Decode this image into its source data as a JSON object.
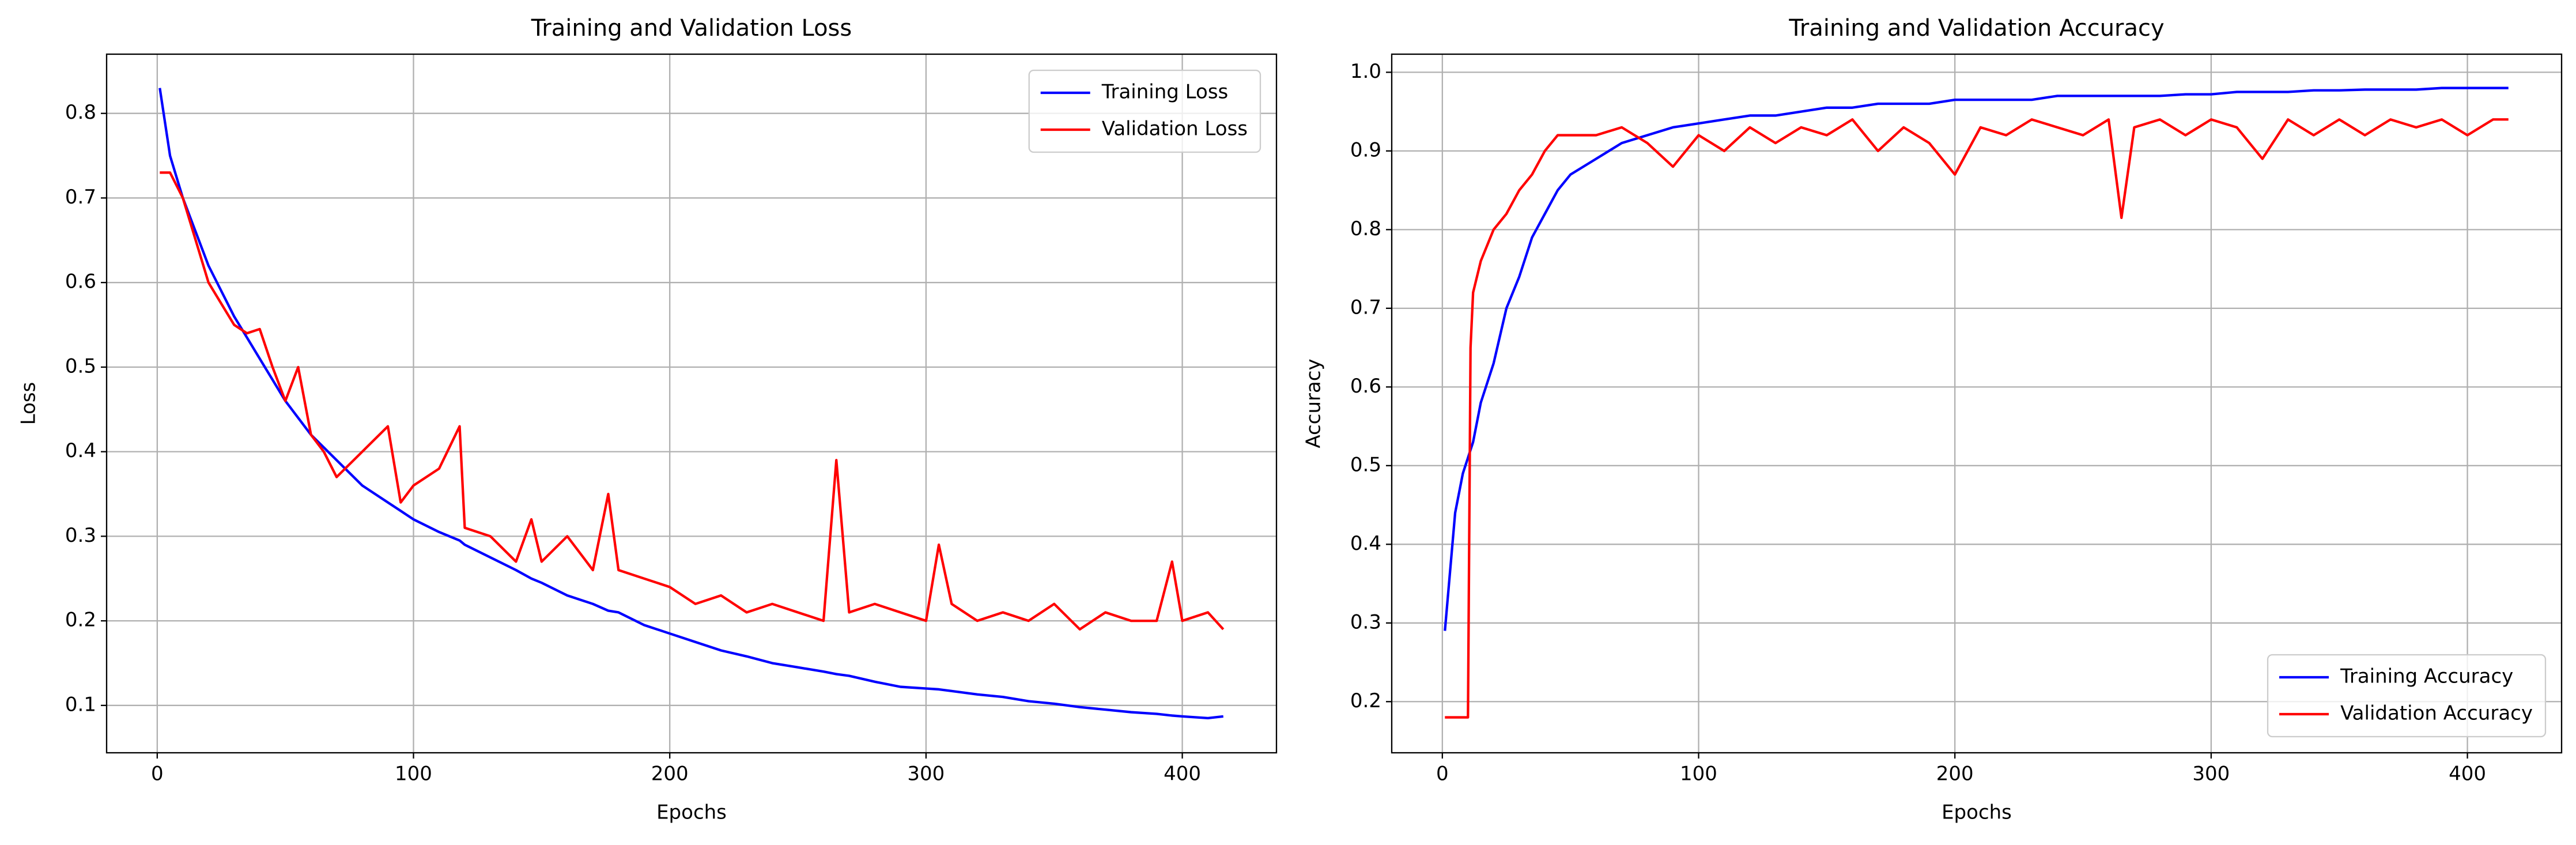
{
  "chart_data": [
    {
      "type": "line",
      "title": "Training and Validation Loss",
      "x_label": "Epochs",
      "y_label": "Loss",
      "x": [
        1,
        5,
        10,
        15,
        20,
        25,
        30,
        35,
        40,
        45,
        50,
        55,
        60,
        65,
        70,
        80,
        90,
        95,
        100,
        110,
        118,
        120,
        130,
        140,
        146,
        150,
        160,
        170,
        176,
        180,
        190,
        200,
        210,
        220,
        230,
        240,
        250,
        260,
        265,
        270,
        280,
        290,
        300,
        305,
        310,
        320,
        330,
        340,
        350,
        360,
        370,
        380,
        390,
        396,
        400,
        410,
        416
      ],
      "series": [
        {
          "name": "Training Loss",
          "color": "#0000ff",
          "values": [
            0.83,
            0.75,
            0.7,
            0.66,
            0.62,
            0.59,
            0.56,
            0.535,
            0.51,
            0.485,
            0.46,
            0.44,
            0.42,
            0.405,
            0.39,
            0.36,
            0.34,
            0.33,
            0.32,
            0.305,
            0.295,
            0.29,
            0.275,
            0.26,
            0.25,
            0.245,
            0.23,
            0.22,
            0.212,
            0.21,
            0.195,
            0.185,
            0.175,
            0.165,
            0.158,
            0.15,
            0.145,
            0.14,
            0.137,
            0.135,
            0.128,
            0.122,
            0.12,
            0.119,
            0.117,
            0.113,
            0.11,
            0.105,
            0.102,
            0.098,
            0.095,
            0.092,
            0.09,
            0.088,
            0.087,
            0.085,
            0.087
          ]
        },
        {
          "name": "Validation Loss",
          "color": "#ff0000",
          "values": [
            0.73,
            0.73,
            0.7,
            0.65,
            0.6,
            0.575,
            0.55,
            0.54,
            0.545,
            0.5,
            0.46,
            0.5,
            0.42,
            0.4,
            0.37,
            0.4,
            0.43,
            0.34,
            0.36,
            0.38,
            0.43,
            0.31,
            0.3,
            0.27,
            0.32,
            0.27,
            0.3,
            0.26,
            0.35,
            0.26,
            0.25,
            0.24,
            0.22,
            0.23,
            0.21,
            0.22,
            0.21,
            0.2,
            0.39,
            0.21,
            0.22,
            0.21,
            0.2,
            0.29,
            0.22,
            0.2,
            0.21,
            0.2,
            0.22,
            0.19,
            0.21,
            0.2,
            0.2,
            0.27,
            0.2,
            0.21,
            0.19
          ]
        }
      ],
      "xlim": [
        -19.75,
        436.75
      ],
      "xticks": [
        0,
        100,
        200,
        300,
        400
      ],
      "ylim": [
        0.044,
        0.87
      ],
      "yticks": [
        0.1,
        0.2,
        0.3,
        0.4,
        0.5,
        0.6,
        0.7,
        0.8
      ],
      "grid": true,
      "legend": "upper right"
    },
    {
      "type": "line",
      "title": "Training and Validation Accuracy",
      "x_label": "Epochs",
      "y_label": "Accuracy",
      "x": [
        1,
        5,
        8,
        10,
        11,
        12,
        15,
        20,
        25,
        30,
        35,
        40,
        45,
        50,
        60,
        70,
        80,
        90,
        100,
        110,
        120,
        130,
        140,
        150,
        160,
        170,
        180,
        190,
        200,
        210,
        220,
        230,
        240,
        250,
        260,
        265,
        270,
        280,
        290,
        300,
        310,
        320,
        330,
        340,
        350,
        360,
        370,
        380,
        390,
        400,
        410,
        416
      ],
      "series": [
        {
          "name": "Training Accuracy",
          "color": "#0000ff",
          "values": [
            0.29,
            0.44,
            0.49,
            0.51,
            0.52,
            0.53,
            0.58,
            0.63,
            0.7,
            0.74,
            0.79,
            0.82,
            0.85,
            0.87,
            0.89,
            0.91,
            0.92,
            0.93,
            0.935,
            0.94,
            0.945,
            0.945,
            0.95,
            0.955,
            0.955,
            0.96,
            0.96,
            0.96,
            0.965,
            0.965,
            0.965,
            0.965,
            0.97,
            0.97,
            0.97,
            0.97,
            0.97,
            0.97,
            0.972,
            0.972,
            0.975,
            0.975,
            0.975,
            0.977,
            0.977,
            0.978,
            0.978,
            0.978,
            0.98,
            0.98,
            0.98,
            0.98
          ]
        },
        {
          "name": "Validation Accuracy",
          "color": "#ff0000",
          "values": [
            0.18,
            0.18,
            0.18,
            0.18,
            0.65,
            0.72,
            0.76,
            0.8,
            0.82,
            0.85,
            0.87,
            0.9,
            0.92,
            0.92,
            0.92,
            0.93,
            0.91,
            0.88,
            0.92,
            0.9,
            0.93,
            0.91,
            0.93,
            0.92,
            0.94,
            0.9,
            0.93,
            0.91,
            0.87,
            0.93,
            0.92,
            0.94,
            0.93,
            0.92,
            0.94,
            0.815,
            0.93,
            0.94,
            0.92,
            0.94,
            0.93,
            0.89,
            0.94,
            0.92,
            0.94,
            0.92,
            0.94,
            0.93,
            0.94,
            0.92,
            0.94,
            0.94
          ]
        }
      ],
      "xlim": [
        -19.75,
        436.75
      ],
      "xticks": [
        0,
        100,
        200,
        300,
        400
      ],
      "ylim": [
        0.135,
        1.023
      ],
      "yticks": [
        0.2,
        0.3,
        0.4,
        0.5,
        0.6,
        0.7,
        0.8,
        0.9,
        {
          "value": 1.0,
          "label": "1.0"
        }
      ],
      "grid": true,
      "legend": "lower right"
    }
  ]
}
